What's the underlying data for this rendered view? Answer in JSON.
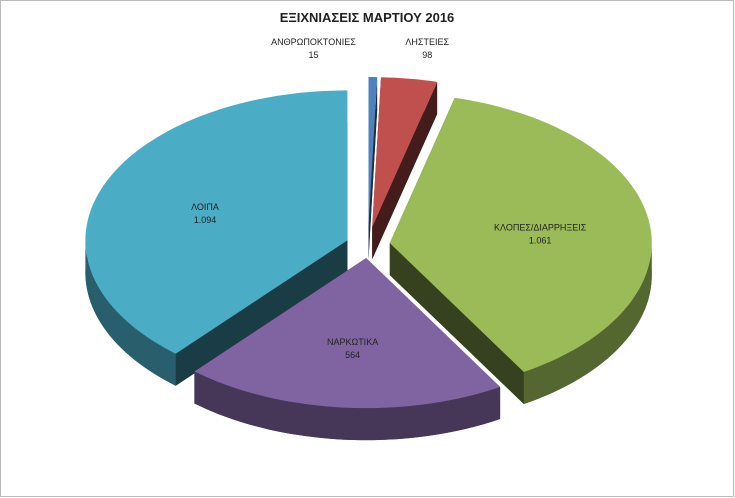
{
  "chart_data": {
    "type": "pie",
    "title": "ΕΞΙΧΝΙΑΣΕΙΣ ΜΑΡΤΙΟΥ 2016",
    "categories": [
      "ΑΝΘΡΩΠΟΚΤΟΝΙΕΣ",
      "ΛΗΣΤΕΙΕΣ",
      "ΚΛΟΠΕΣ/ΔΙΑΡΡΗΞΕΙΣ",
      "ΝΑΡΚΩΤΙΚΑ",
      "ΛΟΙΠΑ"
    ],
    "values": [
      15,
      98,
      1061,
      564,
      1094
    ],
    "value_labels": [
      "15",
      "98",
      "1.061",
      "564",
      "1.094"
    ],
    "colors": [
      "#4f81bd",
      "#c0504d",
      "#9bbb59",
      "#8064a2",
      "#4bacc6"
    ]
  }
}
